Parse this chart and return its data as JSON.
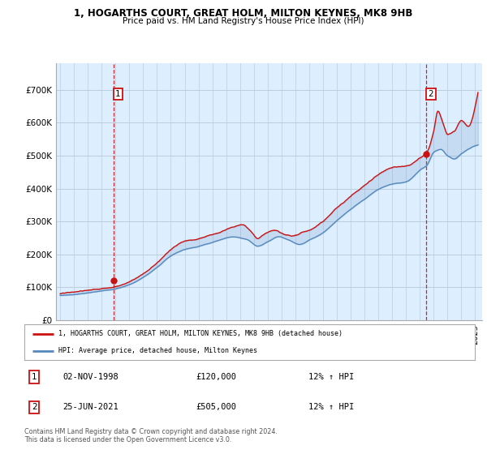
{
  "title_line1": "1, HOGARTHS COURT, GREAT HOLM, MILTON KEYNES, MK8 9HB",
  "title_line2": "Price paid vs. HM Land Registry's House Price Index (HPI)",
  "sale1_date": "02-NOV-1998",
  "sale1_price": 120000,
  "sale1_hpi": "12% ↑ HPI",
  "sale2_date": "25-JUN-2021",
  "sale2_price": 505000,
  "sale2_hpi": "12% ↑ HPI",
  "legend_line1": "1, HOGARTHS COURT, GREAT HOLM, MILTON KEYNES, MK8 9HB (detached house)",
  "legend_line2": "HPI: Average price, detached house, Milton Keynes",
  "footnote": "Contains HM Land Registry data © Crown copyright and database right 2024.\nThis data is licensed under the Open Government Licence v3.0.",
  "hpi_color": "#5588bb",
  "price_color": "#cc1111",
  "vline_color": "#cc1111",
  "bg_chart": "#ddeeff",
  "bg_main": "#ffffff",
  "grid_color": "#bbccdd",
  "ylim_min": 0,
  "ylim_max": 750000,
  "yticks": [
    0,
    100000,
    200000,
    300000,
    400000,
    500000,
    600000,
    700000
  ],
  "ytick_labels": [
    "£0",
    "£100K",
    "£200K",
    "£300K",
    "£400K",
    "£500K",
    "£600K",
    "£700K"
  ],
  "sale1_year": 1998.84,
  "sale2_year": 2021.46,
  "sale1_price_val": 120000,
  "sale2_price_val": 505000,
  "xstart": 1995,
  "xend": 2025
}
